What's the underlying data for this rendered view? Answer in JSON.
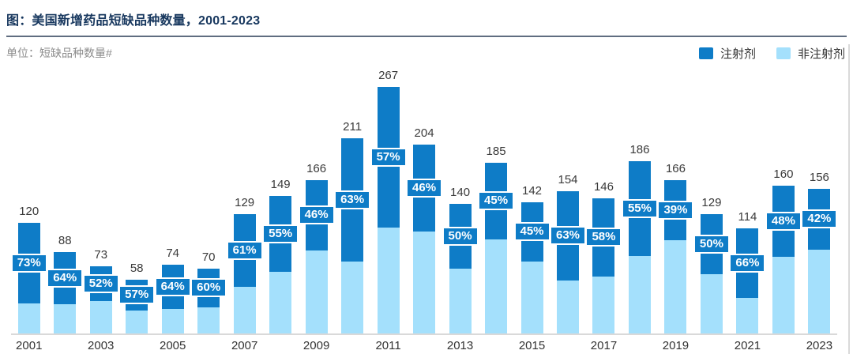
{
  "header": {
    "title": "图：美国新增药品短缺品种数量，2001-2023",
    "unit_label": "单位：短缺品种数量#"
  },
  "legend": [
    {
      "label": "注射剂",
      "color": "#0E7CC7"
    },
    {
      "label": "非注射剂",
      "color": "#A4E0FC"
    }
  ],
  "chart_data": {
    "type": "bar",
    "stacked": true,
    "title": "美国新增药品短缺品种数量，2001-2023",
    "ylabel": "短缺品种数量#",
    "xlabel": "",
    "categories": [
      2001,
      2002,
      2003,
      2004,
      2005,
      2006,
      2007,
      2008,
      2009,
      2010,
      2011,
      2012,
      2013,
      2014,
      2015,
      2016,
      2017,
      2018,
      2019,
      2020,
      2021,
      2022,
      2023
    ],
    "totals": [
      120,
      88,
      73,
      58,
      74,
      70,
      129,
      149,
      166,
      211,
      267,
      204,
      140,
      185,
      142,
      154,
      146,
      186,
      166,
      129,
      114,
      160,
      156
    ],
    "injectable_pct": [
      73,
      64,
      52,
      57,
      64,
      60,
      61,
      55,
      46,
      63,
      57,
      46,
      50,
      45,
      45,
      63,
      58,
      55,
      39,
      50,
      66,
      48,
      42
    ],
    "pct_label_series": "注射剂",
    "series": [
      {
        "name": "注射剂",
        "role": "top-segment"
      },
      {
        "name": "非注射剂",
        "role": "bottom-segment"
      }
    ],
    "x_tick_labels": [
      "2001",
      "2003",
      "2005",
      "2007",
      "2009",
      "2011",
      "2013",
      "2015",
      "2017",
      "2019",
      "2021",
      "2023"
    ],
    "ylim": [
      0,
      280
    ],
    "grid": false,
    "legend_position": "top-right",
    "colors": {
      "injectable": "#0E7CC7",
      "non_injectable": "#A4E0FC",
      "title": "#17375E",
      "axis_line": "#d9d9d9",
      "value_label": "#3a3a3a",
      "unit_label": "#8c8c8c"
    }
  }
}
